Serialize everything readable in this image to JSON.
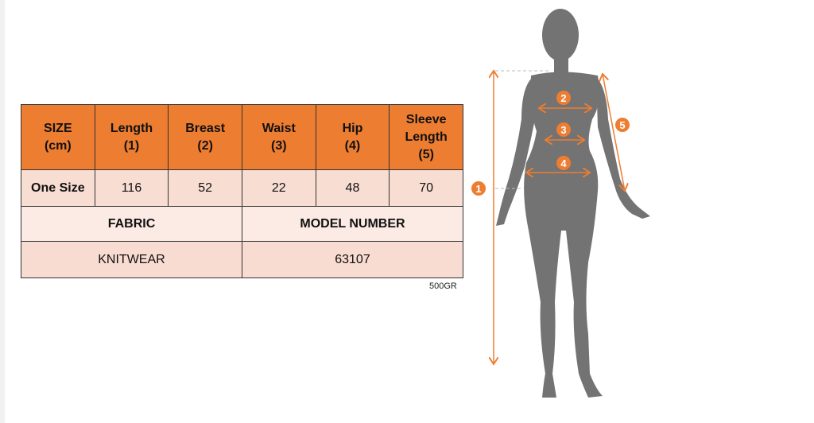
{
  "size_table": {
    "headers": [
      "SIZE\n(cm)",
      "Length\n(1)",
      "Breast\n(2)",
      "Waist\n(3)",
      "Hip\n(4)",
      "Sleeve\nLength\n(5)"
    ],
    "rows": [
      [
        "One Size",
        "116",
        "52",
        "22",
        "48",
        "70"
      ]
    ],
    "fabric_label": "FABRIC",
    "model_number_label": "MODEL NUMBER",
    "fabric_value": "KNITWEAR",
    "model_number_value": "63107"
  },
  "weight_note": "500GR",
  "figure": {
    "markers": [
      "1",
      "2",
      "3",
      "4",
      "5"
    ],
    "accent_color": "#ed7d31",
    "silhouette_color": "#737373"
  },
  "colors": {
    "header_bg": "#ed7d31",
    "row_bg": "#f8ddd3",
    "label_row_bg": "#fceae4"
  }
}
